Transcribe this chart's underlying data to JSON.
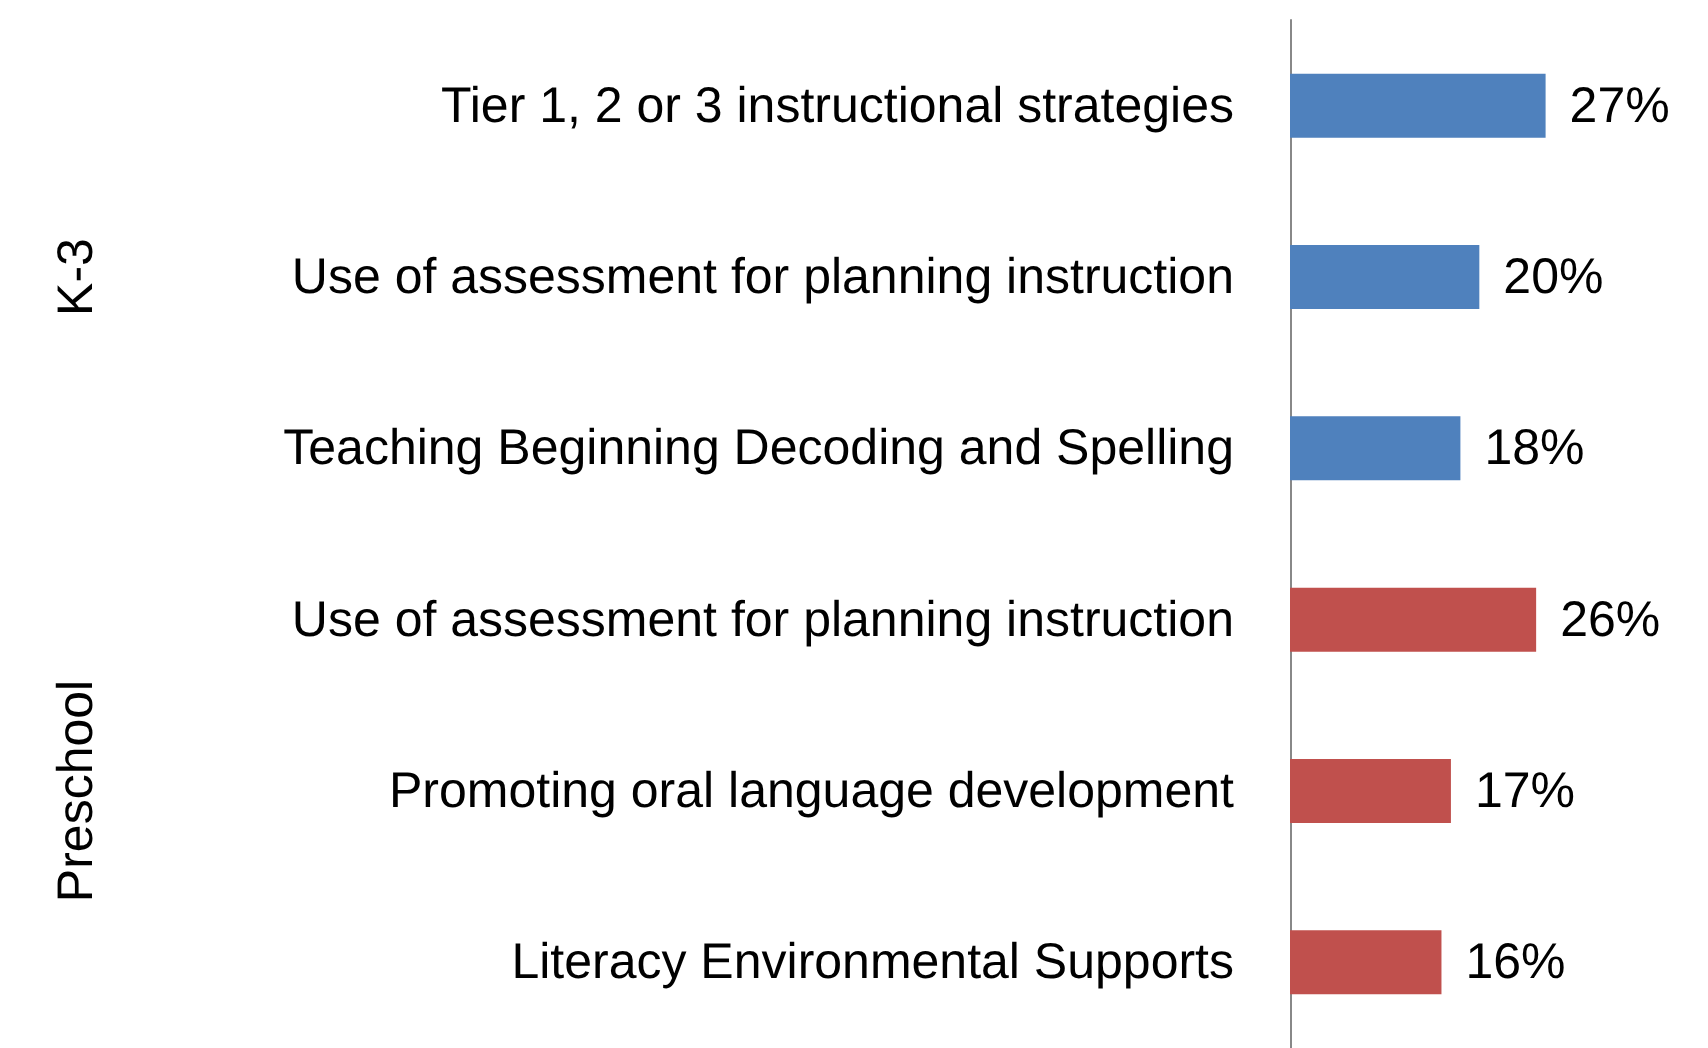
{
  "chart_data": {
    "type": "bar",
    "orientation": "horizontal",
    "tick_labels": "y",
    "categories": [
      "Tier 1, 2 or 3 instructional strategies",
      "Use of assessment for planning instruction",
      "Teaching Beginning Decoding and Spelling",
      "Use of assessment for planning instruction",
      "Promoting oral language development",
      "Literacy Environmental Supports"
    ],
    "values": [
      27,
      20,
      18,
      26,
      17,
      16
    ],
    "colors": [
      "#4f81bd",
      "#4f81bd",
      "#4f81bd",
      "#c0504d",
      "#c0504d",
      "#c0504d"
    ],
    "value_labels": [
      "27%",
      "20%",
      "18%",
      "26%",
      "17%",
      "16%"
    ],
    "annotations": [
      "K-3",
      "Preschool"
    ]
  }
}
